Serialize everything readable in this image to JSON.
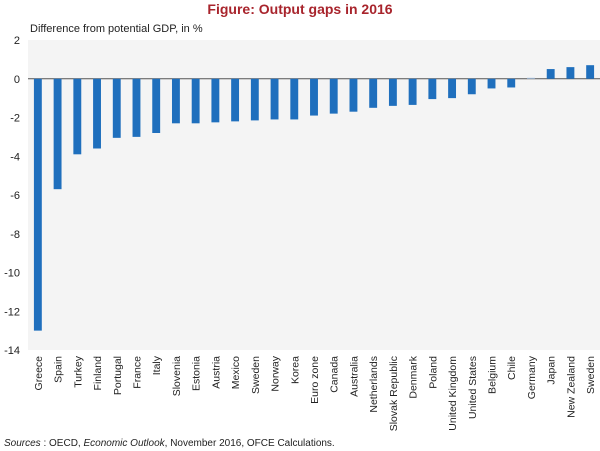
{
  "chart_data": {
    "type": "bar",
    "title": "Figure: Output gaps in 2016",
    "ylabel": "Difference from potential GDP, in %",
    "ylim": [
      -14,
      2
    ],
    "yticks": [
      2,
      0,
      -2,
      -4,
      -6,
      -8,
      -10,
      -12,
      -14
    ],
    "grid": false,
    "bar_color": "#1f6fbd",
    "categories": [
      "Greece",
      "Spain",
      "Turkey",
      "Finland",
      "Portugal",
      "France",
      "Italy",
      "Slovenia",
      "Estonia",
      "Austria",
      "Mexico",
      "Sweden",
      "Norway",
      "Korea",
      "Euro zone",
      "Canada",
      "Australia",
      "Netherlands",
      "Slovak Republic",
      "Denmark",
      "Poland",
      "United Kingdom",
      "United States",
      "Belgium",
      "Chile",
      "Germany",
      "Japan",
      "New Zealand",
      "Sweden"
    ],
    "values": [
      -13.0,
      -5.7,
      -3.9,
      -3.6,
      -3.05,
      -3.0,
      -2.8,
      -2.3,
      -2.3,
      -2.25,
      -2.2,
      -2.15,
      -2.1,
      -2.1,
      -1.9,
      -1.8,
      -1.7,
      -1.5,
      -1.4,
      -1.35,
      -1.05,
      -1.0,
      -0.8,
      -0.5,
      -0.45,
      0.05,
      0.5,
      0.6,
      0.7
    ]
  },
  "source": {
    "label": "Sources",
    "separator": " : OECD, ",
    "publication": "Economic Outlook",
    "rest": ", November 2016, OFCE Calculations."
  }
}
